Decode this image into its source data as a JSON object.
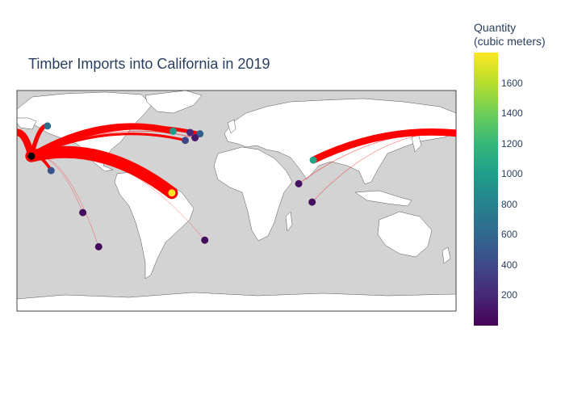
{
  "title": "Timber Imports into California in 2019",
  "colorbar": {
    "title_line1": "Quantity",
    "title_line2": "(cubic meters)",
    "ticks": [
      200,
      400,
      600,
      800,
      1000,
      1200,
      1400,
      1600
    ],
    "range": [
      0,
      1800
    ],
    "colors": [
      "#440154",
      "#482878",
      "#3e4989",
      "#31688e",
      "#26828e",
      "#1f9e89",
      "#35b779",
      "#6ece58",
      "#b5de2b",
      "#fde725"
    ]
  },
  "map": {
    "land_color": "#ffffff",
    "ocean_color": "#d3d3d3",
    "route_color": "#ff0000",
    "destination": {
      "name": "California",
      "lon": -118.2,
      "lat": 34.0,
      "color": "#000000"
    },
    "projection": "equirectangular"
  },
  "chart_data": {
    "type": "scatter",
    "origins": [
      {
        "lon": -3.0,
        "lat": 6.0,
        "quantity": 1800,
        "route": "east"
      },
      {
        "lon": 113.0,
        "lat": 31.0,
        "quantity": 1050,
        "route": "pacific"
      },
      {
        "lon": -2.0,
        "lat": 53.0,
        "quantity": 950,
        "route": "east"
      },
      {
        "lon": -105.0,
        "lat": 57.0,
        "quantity": 650,
        "route": "east"
      },
      {
        "lon": 20.0,
        "lat": 51.0,
        "quantity": 550,
        "route": "east"
      },
      {
        "lon": -102.0,
        "lat": 23.0,
        "quantity": 450,
        "route": "east"
      },
      {
        "lon": 8.0,
        "lat": 46.0,
        "quantity": 380,
        "route": "east"
      },
      {
        "lon": 12.0,
        "lat": 52.0,
        "quantity": 200,
        "route": "east"
      },
      {
        "lon": 16.0,
        "lat": 48.0,
        "quantity": 120,
        "route": "east"
      },
      {
        "lon": -76.0,
        "lat": -9.0,
        "quantity": 60,
        "route": "east"
      },
      {
        "lon": -63.0,
        "lat": -35.0,
        "quantity": 40,
        "route": "east"
      },
      {
        "lon": 24.0,
        "lat": -30.0,
        "quantity": 50,
        "route": "east"
      },
      {
        "lon": 101.0,
        "lat": 13.0,
        "quantity": 90,
        "route": "pacific"
      },
      {
        "lon": 112.0,
        "lat": -1.0,
        "quantity": 70,
        "route": "pacific"
      }
    ]
  }
}
